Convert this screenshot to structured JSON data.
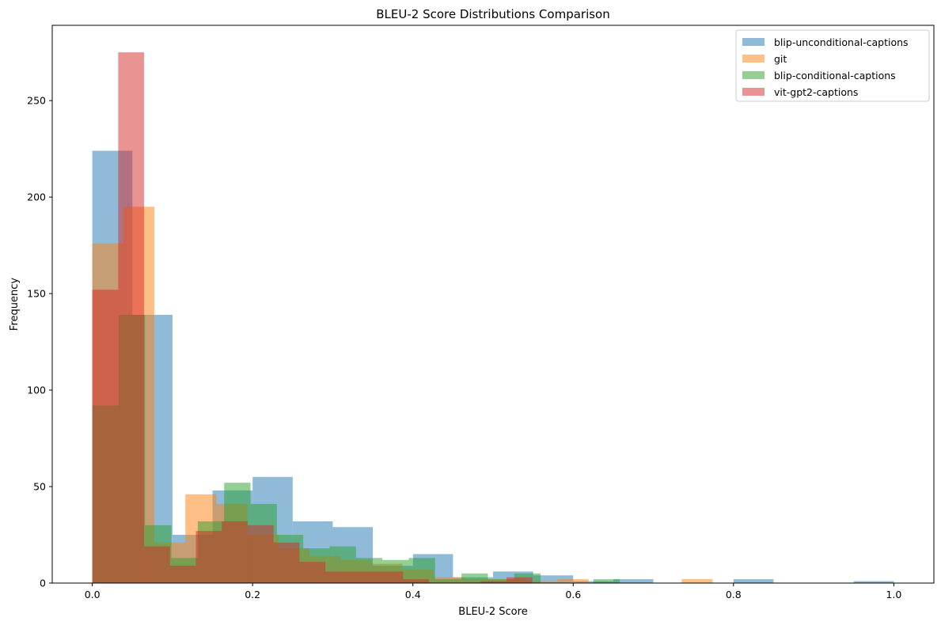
{
  "chart_data": {
    "type": "bar",
    "title": "BLEU-2 Score Distributions Comparison",
    "xlabel": "BLEU-2 Score",
    "ylabel": "Frequency",
    "xlim": [
      -0.05,
      1.05
    ],
    "ylim": [
      0,
      289
    ],
    "xticks": [
      0.0,
      0.2,
      0.4,
      0.6,
      0.8,
      1.0
    ],
    "xtick_labels": [
      "0.0",
      "0.2",
      "0.4",
      "0.6",
      "0.8",
      "1.0"
    ],
    "yticks": [
      0,
      50,
      100,
      150,
      200,
      250
    ],
    "ytick_labels": [
      "0",
      "50",
      "100",
      "150",
      "200",
      "250"
    ],
    "grid": false,
    "legend_position": "top-right",
    "alpha": 0.5,
    "series": [
      {
        "name": "blip-unconditional-captions",
        "color": "#1f77b4",
        "bin_edges": [
          0.0,
          0.05,
          0.1,
          0.15,
          0.2,
          0.25,
          0.3,
          0.35,
          0.4,
          0.45,
          0.5,
          0.55,
          0.6,
          0.65,
          0.7,
          0.75,
          0.8,
          0.85,
          0.9,
          0.95,
          1.0
        ],
        "counts": [
          224,
          139,
          25,
          48,
          55,
          32,
          29,
          9,
          15,
          3,
          6,
          4,
          1,
          2,
          0,
          0,
          2,
          0,
          0,
          1
        ]
      },
      {
        "name": "git",
        "color": "#ff7f0e",
        "bin_edges": [
          0.0,
          0.0387,
          0.0774,
          0.1161,
          0.1548,
          0.1935,
          0.2322,
          0.2709,
          0.3096,
          0.3483,
          0.387,
          0.4257,
          0.4644,
          0.5031,
          0.5418,
          0.5805,
          0.6192,
          0.6579,
          0.6966,
          0.7353,
          0.774
        ],
        "counts": [
          176,
          195,
          21,
          46,
          41,
          25,
          18,
          14,
          12,
          10,
          7,
          3,
          2,
          2,
          1,
          2,
          0,
          0,
          0,
          2
        ]
      },
      {
        "name": "blip-conditional-captions",
        "color": "#2ca02c",
        "bin_edges": [
          0.0,
          0.0329,
          0.0658,
          0.0987,
          0.1316,
          0.1645,
          0.1974,
          0.2303,
          0.2632,
          0.2961,
          0.329,
          0.3619,
          0.3948,
          0.4277,
          0.4606,
          0.4935,
          0.5264,
          0.5593,
          0.5922,
          0.6251,
          0.658
        ],
        "counts": [
          92,
          139,
          30,
          13,
          32,
          52,
          41,
          25,
          18,
          19,
          13,
          12,
          13,
          2,
          5,
          2,
          5,
          0,
          0,
          2
        ]
      },
      {
        "name": "vit-gpt2-captions",
        "color": "#d62728",
        "bin_edges": [
          0.0,
          0.0323,
          0.0646,
          0.0969,
          0.1292,
          0.1615,
          0.1938,
          0.2261,
          0.2584,
          0.2907,
          0.323,
          0.3553,
          0.3876,
          0.4199,
          0.4522,
          0.4845,
          0.5168,
          0.5491,
          0.5814,
          0.6137,
          0.646
        ],
        "counts": [
          152,
          275,
          19,
          9,
          27,
          32,
          30,
          21,
          11,
          6,
          6,
          6,
          2,
          0,
          0,
          1,
          3,
          0,
          0,
          0
        ]
      }
    ]
  }
}
